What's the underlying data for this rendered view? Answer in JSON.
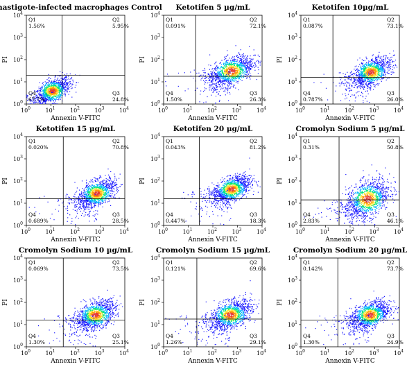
{
  "chart_data": [
    {
      "type": "scatter",
      "title": "Amastigote-infected macrophages Control",
      "xlabel": "Annexin V-FITC",
      "ylabel": "PI",
      "x_ticks": [
        "10",
        "10",
        "10",
        "10",
        "10"
      ],
      "x_tick_exp": [
        "0",
        "1",
        "2",
        "3",
        "4"
      ],
      "y_ticks": [
        "10",
        "10",
        "10",
        "10",
        "10"
      ],
      "y_tick_exp": [
        "0",
        "1",
        "2",
        "3",
        "4"
      ],
      "quadrants": {
        "Q1": {
          "label": "Q1",
          "value": "1.56%"
        },
        "Q2": {
          "label": "Q2",
          "value": "5.95%"
        },
        "Q3": {
          "label": "Q3",
          "value": "24.8%"
        },
        "Q4": {
          "label": "Q4",
          "value": "67.7%"
        }
      },
      "gate_x": 1.45,
      "gate_y": 1.3,
      "cluster": {
        "x": 1.05,
        "y": 0.6,
        "sx": 0.35,
        "sy": 0.3,
        "rho": 0.55
      }
    },
    {
      "type": "scatter",
      "title": "Ketotifen 5 µg/mL",
      "xlabel": "Annexin V-FITC",
      "ylabel": "PI",
      "x_ticks": [
        "10",
        "10",
        "10",
        "10",
        "10"
      ],
      "x_tick_exp": [
        "0",
        "1",
        "2",
        "3",
        "4"
      ],
      "y_ticks": [
        "10",
        "10",
        "10",
        "10",
        "10"
      ],
      "y_tick_exp": [
        "0",
        "1",
        "2",
        "3",
        "4"
      ],
      "quadrants": {
        "Q1": {
          "label": "Q1",
          "value": "0.091%"
        },
        "Q2": {
          "label": "Q2",
          "value": "72.1%"
        },
        "Q3": {
          "label": "Q3",
          "value": "26.3%"
        },
        "Q4": {
          "label": "Q4",
          "value": "1.50%"
        }
      },
      "gate_x": 1.3,
      "gate_y": 1.25,
      "cluster": {
        "x": 2.75,
        "y": 1.5,
        "sx": 0.45,
        "sy": 0.35,
        "rho": 0.5
      }
    },
    {
      "type": "scatter",
      "title": "Ketotifen 10µg/mL",
      "xlabel": "Annexin V-FITC",
      "ylabel": "PI",
      "x_ticks": [
        "10",
        "10",
        "10",
        "10",
        "10"
      ],
      "x_tick_exp": [
        "0",
        "1",
        "2",
        "3",
        "4"
      ],
      "y_ticks": [
        "10",
        "10",
        "10",
        "10",
        "10"
      ],
      "y_tick_exp": [
        "0",
        "1",
        "2",
        "3",
        "4"
      ],
      "quadrants": {
        "Q1": {
          "label": "Q1",
          "value": "0.087%"
        },
        "Q2": {
          "label": "Q2",
          "value": "73.1%"
        },
        "Q3": {
          "label": "Q3",
          "value": "26.0%"
        },
        "Q4": {
          "label": "Q4",
          "value": "0.787%"
        }
      },
      "gate_x": 1.3,
      "gate_y": 1.2,
      "cluster": {
        "x": 2.85,
        "y": 1.45,
        "sx": 0.38,
        "sy": 0.32,
        "rho": 0.5
      }
    },
    {
      "type": "scatter",
      "title": "Ketotifen 15 µg/mL",
      "xlabel": "Annexin V-FITC",
      "ylabel": "PI",
      "x_ticks": [
        "10",
        "10",
        "10",
        "10",
        "10"
      ],
      "x_tick_exp": [
        "0",
        "1",
        "2",
        "3",
        "4"
      ],
      "y_ticks": [
        "10",
        "10",
        "10",
        "10",
        "10"
      ],
      "y_tick_exp": [
        "0",
        "1",
        "2",
        "3",
        "4"
      ],
      "quadrants": {
        "Q1": {
          "label": "Q1",
          "value": "0.020%"
        },
        "Q2": {
          "label": "Q2",
          "value": "70.8%"
        },
        "Q3": {
          "label": "Q3",
          "value": "28.5%"
        },
        "Q4": {
          "label": "Q4",
          "value": "0.689%"
        }
      },
      "gate_x": 1.5,
      "gate_y": 1.2,
      "cluster": {
        "x": 2.85,
        "y": 1.45,
        "sx": 0.38,
        "sy": 0.32,
        "rho": 0.5
      }
    },
    {
      "type": "scatter",
      "title": "Ketotifen 20 µg/mL",
      "xlabel": "Annexin V-FITC",
      "ylabel": "PI",
      "x_ticks": [
        "10",
        "10",
        "10",
        "10",
        "10"
      ],
      "x_tick_exp": [
        "0",
        "1",
        "2",
        "3",
        "4"
      ],
      "y_ticks": [
        "10",
        "10",
        "10",
        "10",
        "10"
      ],
      "y_tick_exp": [
        "0",
        "1",
        "2",
        "3",
        "4"
      ],
      "quadrants": {
        "Q1": {
          "label": "Q1",
          "value": "0.043%"
        },
        "Q2": {
          "label": "Q2",
          "value": "81.2%"
        },
        "Q3": {
          "label": "Q3",
          "value": "18.3%"
        },
        "Q4": {
          "label": "Q4",
          "value": "0.447%"
        }
      },
      "gate_x": 1.45,
      "gate_y": 1.2,
      "cluster": {
        "x": 2.75,
        "y": 1.65,
        "sx": 0.38,
        "sy": 0.3,
        "rho": 0.5
      }
    },
    {
      "type": "scatter",
      "title": "Cromolyn Sodium 5 µg/mL",
      "xlabel": "Annexin V-FITC",
      "ylabel": "PI",
      "x_ticks": [
        "10",
        "10",
        "10",
        "10",
        "10"
      ],
      "x_tick_exp": [
        "0",
        "1",
        "2",
        "3",
        "4"
      ],
      "y_ticks": [
        "10",
        "10",
        "10",
        "10",
        "10"
      ],
      "y_tick_exp": [
        "0",
        "1",
        "2",
        "3",
        "4"
      ],
      "quadrants": {
        "Q1": {
          "label": "Q1",
          "value": "0.31%"
        },
        "Q2": {
          "label": "Q2",
          "value": "50.8%"
        },
        "Q3": {
          "label": "Q3",
          "value": "46.1%"
        },
        "Q4": {
          "label": "Q4",
          "value": "2.83%"
        }
      },
      "gate_x": 1.55,
      "gate_y": 1.15,
      "cluster": {
        "x": 2.7,
        "y": 1.2,
        "sx": 0.45,
        "sy": 0.45,
        "rho": 0.4
      }
    },
    {
      "type": "scatter",
      "title": "Cromolyn Sodium 10 µg/mL",
      "xlabel": "Annexin V-FITC",
      "ylabel": "PI",
      "x_ticks": [
        "10",
        "10",
        "10",
        "10",
        "10"
      ],
      "x_tick_exp": [
        "0",
        "1",
        "2",
        "3",
        "4"
      ],
      "y_ticks": [
        "10",
        "10",
        "10",
        "10",
        "10"
      ],
      "y_tick_exp": [
        "0",
        "1",
        "2",
        "3",
        "4"
      ],
      "quadrants": {
        "Q1": {
          "label": "Q1",
          "value": "0.069%"
        },
        "Q2": {
          "label": "Q2",
          "value": "73.5%"
        },
        "Q3": {
          "label": "Q3",
          "value": "25.1%"
        },
        "Q4": {
          "label": "Q4",
          "value": "1.30%"
        }
      },
      "gate_x": 1.5,
      "gate_y": 1.2,
      "cluster": {
        "x": 2.8,
        "y": 1.45,
        "sx": 0.4,
        "sy": 0.32,
        "rho": 0.45
      }
    },
    {
      "type": "scatter",
      "title": "Cromolyn Sodium 15 µg/mL",
      "xlabel": "Annexin V-FITC",
      "ylabel": "PI",
      "x_ticks": [
        "10",
        "10",
        "10",
        "10",
        "10"
      ],
      "x_tick_exp": [
        "0",
        "1",
        "2",
        "3",
        "4"
      ],
      "y_ticks": [
        "10",
        "10",
        "10",
        "10",
        "10"
      ],
      "y_tick_exp": [
        "0",
        "1",
        "2",
        "3",
        "4"
      ],
      "quadrants": {
        "Q1": {
          "label": "Q1",
          "value": "0.121%"
        },
        "Q2": {
          "label": "Q2",
          "value": "69.6%"
        },
        "Q3": {
          "label": "Q3",
          "value": "29.1%"
        },
        "Q4": {
          "label": "Q4",
          "value": "1.26%"
        }
      },
      "gate_x": 1.35,
      "gate_y": 1.25,
      "cluster": {
        "x": 2.7,
        "y": 1.45,
        "sx": 0.42,
        "sy": 0.33,
        "rho": 0.45
      }
    },
    {
      "type": "scatter",
      "title": "Cromolyn Sodium 20 µg/mL",
      "xlabel": "Annexin V-FITC",
      "ylabel": "PI",
      "x_ticks": [
        "10",
        "10",
        "10",
        "10",
        "10"
      ],
      "x_tick_exp": [
        "0",
        "1",
        "2",
        "3",
        "4"
      ],
      "y_ticks": [
        "10",
        "10",
        "10",
        "10",
        "10"
      ],
      "y_tick_exp": [
        "0",
        "1",
        "2",
        "3",
        "4"
      ],
      "quadrants": {
        "Q1": {
          "label": "Q1",
          "value": "0.142%"
        },
        "Q2": {
          "label": "Q2",
          "value": "73.7%"
        },
        "Q3": {
          "label": "Q3",
          "value": "24.9%"
        },
        "Q4": {
          "label": "Q4",
          "value": "1.30%"
        }
      },
      "gate_x": 1.5,
      "gate_y": 1.2,
      "cluster": {
        "x": 2.8,
        "y": 1.45,
        "sx": 0.4,
        "sy": 0.32,
        "rho": 0.45
      }
    }
  ],
  "density_colors": [
    "#1a1aff",
    "#00b4ff",
    "#00e676",
    "#ffeb3b",
    "#ff9800",
    "#e53935"
  ]
}
